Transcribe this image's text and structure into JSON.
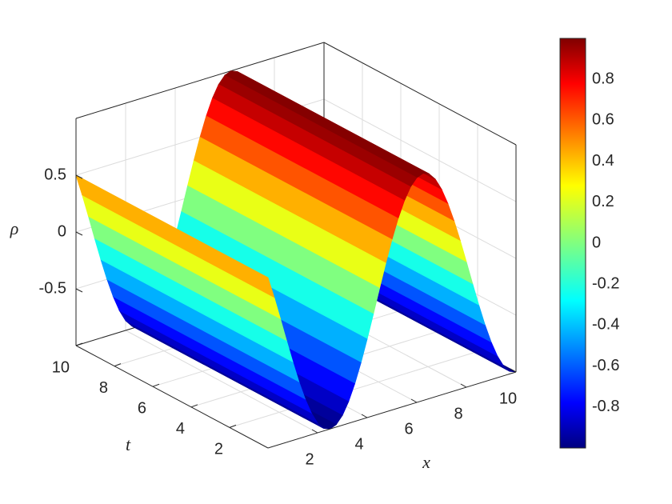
{
  "chart_data": {
    "type": "surface",
    "xlabel": "x",
    "ylabel": "t",
    "zlabel": "ρ",
    "x": [
      0,
      0.25,
      0.5,
      0.75,
      1,
      1.25,
      1.5,
      1.75,
      2,
      2.25,
      2.5,
      2.75,
      3,
      3.25,
      3.5,
      3.75,
      4,
      4.25,
      4.5,
      4.75,
      5,
      5.25,
      5.5,
      5.75,
      6,
      6.25,
      6.5,
      6.75,
      7,
      7.25,
      7.5,
      7.75,
      8,
      8.25,
      8.5,
      8.75,
      9,
      9.25,
      9.5,
      9.75,
      10
    ],
    "values": [
      0.5,
      0.309,
      0.105,
      -0.105,
      -0.309,
      -0.5,
      -0.669,
      -0.809,
      -0.914,
      -0.978,
      -1,
      -0.978,
      -0.914,
      -0.809,
      -0.669,
      -0.5,
      -0.309,
      -0.105,
      0.105,
      0.309,
      0.5,
      0.669,
      0.809,
      0.914,
      0.978,
      1,
      0.978,
      0.914,
      0.809,
      0.669,
      0.5,
      0.309,
      0.105,
      -0.105,
      -0.309,
      -0.5,
      -0.669,
      -0.809,
      -0.914,
      -0.978,
      -1
    ],
    "xlim": [
      0,
      10
    ],
    "xticks": [
      2,
      4,
      6,
      8,
      10
    ],
    "ylim": [
      0,
      10
    ],
    "yticks": [
      2,
      4,
      6,
      8,
      10
    ],
    "zlim": [
      -1,
      1
    ],
    "zticks": [
      -0.5,
      0,
      0.5
    ],
    "colormap": "jet",
    "grid": true,
    "colorbar": {
      "clim": [
        -1,
        1
      ],
      "ticks": [
        -0.8,
        -0.6,
        -0.4,
        -0.2,
        0,
        0.2,
        0.4,
        0.6,
        0.8
      ]
    }
  }
}
